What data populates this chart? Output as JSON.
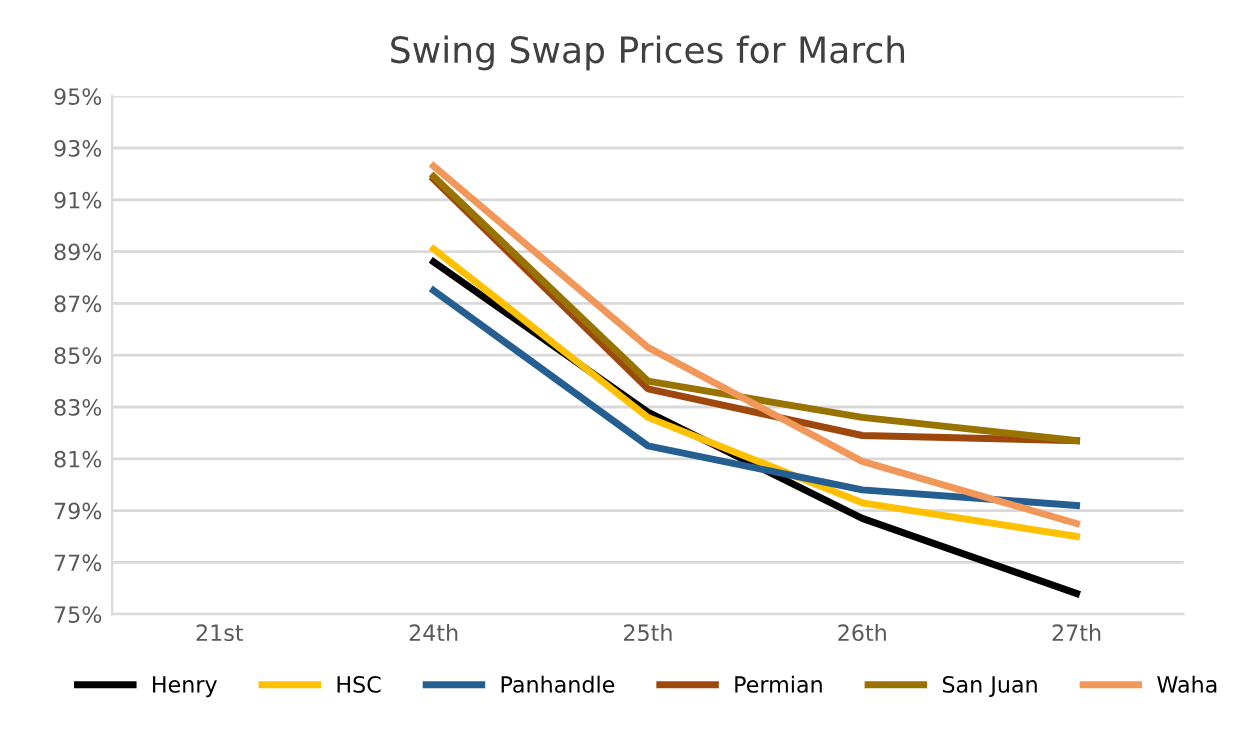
{
  "chart_data": {
    "type": "line",
    "title": "Swing Swap Prices for March",
    "categories": [
      "21st",
      "24th",
      "25th",
      "26th",
      "27th"
    ],
    "series": [
      {
        "name": "Henry",
        "color": "#000000",
        "values": [
          null,
          88.6,
          82.8,
          78.7,
          75.8
        ]
      },
      {
        "name": "HSC",
        "color": "#ffc000",
        "values": [
          null,
          89.1,
          82.6,
          79.3,
          78.0
        ]
      },
      {
        "name": "Panhandle",
        "color": "#255e91",
        "values": [
          null,
          87.5,
          81.5,
          79.8,
          79.2
        ]
      },
      {
        "name": "Permian",
        "color": "#9e480e",
        "values": [
          null,
          91.8,
          83.7,
          81.9,
          81.7
        ]
      },
      {
        "name": "San Juan",
        "color": "#997300",
        "values": [
          null,
          91.9,
          84.0,
          82.6,
          81.7
        ]
      },
      {
        "name": "Waha",
        "color": "#f1975a",
        "values": [
          null,
          92.3,
          85.3,
          80.9,
          78.5
        ]
      }
    ],
    "ylim": [
      75,
      95
    ],
    "yticks": [
      {
        "value": 75,
        "label": "75%"
      },
      {
        "value": 77,
        "label": "77%"
      },
      {
        "value": 79,
        "label": "79%"
      },
      {
        "value": 81,
        "label": "81%"
      },
      {
        "value": 83,
        "label": "83%"
      },
      {
        "value": 85,
        "label": "85%"
      },
      {
        "value": 87,
        "label": "87%"
      },
      {
        "value": 89,
        "label": "89%"
      },
      {
        "value": 91,
        "label": "91%"
      },
      {
        "value": 93,
        "label": "93%"
      },
      {
        "value": 95,
        "label": "95%"
      }
    ],
    "grid": "y",
    "legend": "bottom",
    "marker": "none",
    "line_style": "solid"
  }
}
